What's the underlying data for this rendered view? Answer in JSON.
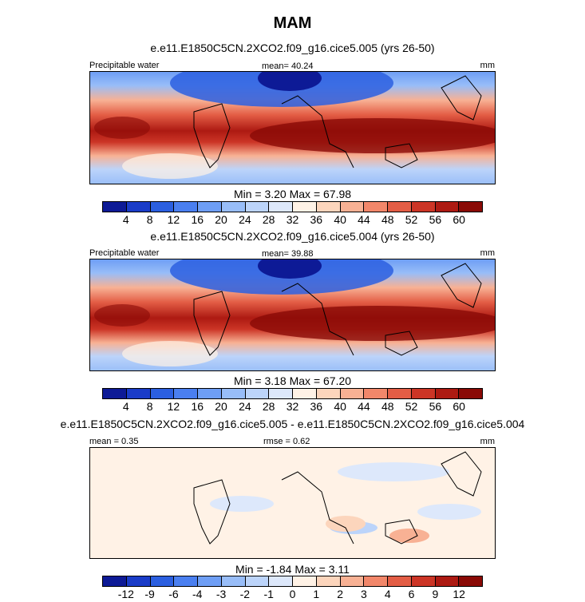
{
  "main_title": "MAM",
  "panels": [
    {
      "case_title": "e.e11.E1850C5CN.2XCO2.f09_g16.cice5.005 (yrs 26-50)",
      "left_label": "Precipitable water",
      "mid_label": "mean=  40.24",
      "right_label": "mm",
      "minmax": "Min =   3.20  Max =   67.98"
    },
    {
      "case_title": "e.e11.E1850C5CN.2XCO2.f09_g16.cice5.004 (yrs 26-50)",
      "left_label": "Precipitable water",
      "mid_label": "mean=  39.88",
      "right_label": "mm",
      "minmax": "Min =   3.18  Max =   67.20"
    },
    {
      "case_title": "e.e11.E1850C5CN.2XCO2.f09_g16.cice5.005 - e.e11.E1850C5CN.2XCO2.f09_g16.cice5.004",
      "left_label": "mean =   0.35",
      "mid_label": "rmse =   0.62",
      "right_label": "mm",
      "minmax": "Min =  -1.84  Max =    3.11"
    }
  ],
  "chart_data": [
    {
      "type": "heatmap",
      "title": "e.e11.E1850C5CN.2XCO2.f09_g16.cice5.005 (yrs 26-50)",
      "variable": "Precipitable water",
      "units": "mm",
      "mean": 40.24,
      "min": 3.2,
      "max": 67.98,
      "colorbar_levels": [
        4,
        8,
        12,
        16,
        20,
        24,
        28,
        32,
        36,
        40,
        44,
        48,
        52,
        56,
        60
      ],
      "colorbar_tick_labels": [
        "4",
        "8",
        "12",
        "16",
        "20",
        "24",
        "28",
        "32",
        "36",
        "40",
        "44",
        "48",
        "52",
        "56",
        "60"
      ],
      "colorbar_colors": [
        "#0d1a96",
        "#1a3cc8",
        "#2b5fe0",
        "#4a7ff0",
        "#6e9ef5",
        "#98bdf8",
        "#bcd4fa",
        "#dde8fb",
        "#fff2e6",
        "#fcd5bc",
        "#f8b194",
        "#f2876a",
        "#e35d45",
        "#cc3526",
        "#ad1a12",
        "#8a0a06"
      ]
    },
    {
      "type": "heatmap",
      "title": "e.e11.E1850C5CN.2XCO2.f09_g16.cice5.004 (yrs 26-50)",
      "variable": "Precipitable water",
      "units": "mm",
      "mean": 39.88,
      "min": 3.18,
      "max": 67.2,
      "colorbar_levels": [
        4,
        8,
        12,
        16,
        20,
        24,
        28,
        32,
        36,
        40,
        44,
        48,
        52,
        56,
        60
      ],
      "colorbar_tick_labels": [
        "4",
        "8",
        "12",
        "16",
        "20",
        "24",
        "28",
        "32",
        "36",
        "40",
        "44",
        "48",
        "52",
        "56",
        "60"
      ],
      "colorbar_colors": [
        "#0d1a96",
        "#1a3cc8",
        "#2b5fe0",
        "#4a7ff0",
        "#6e9ef5",
        "#98bdf8",
        "#bcd4fa",
        "#dde8fb",
        "#fff2e6",
        "#fcd5bc",
        "#f8b194",
        "#f2876a",
        "#e35d45",
        "#cc3526",
        "#ad1a12",
        "#8a0a06"
      ]
    },
    {
      "type": "heatmap",
      "title": "e.e11.E1850C5CN.2XCO2.f09_g16.cice5.005 - e.e11.E1850C5CN.2XCO2.f09_g16.cice5.004",
      "units": "mm",
      "mean": 0.35,
      "rmse": 0.62,
      "min": -1.84,
      "max": 3.11,
      "colorbar_levels": [
        -12,
        -9,
        -6,
        -4,
        -3,
        -2,
        -1,
        0,
        1,
        2,
        3,
        4,
        6,
        9,
        12
      ],
      "colorbar_tick_labels": [
        "-12",
        "-9",
        "-6",
        "-4",
        "-3",
        "-2",
        "-1",
        "0",
        "1",
        "2",
        "3",
        "4",
        "6",
        "9",
        "12"
      ],
      "colorbar_colors": [
        "#0d1a96",
        "#1a3cc8",
        "#2b5fe0",
        "#4a7ff0",
        "#6e9ef5",
        "#98bdf8",
        "#bcd4fa",
        "#dde8fb",
        "#fff2e6",
        "#fcd5bc",
        "#f8b194",
        "#f2876a",
        "#e35d45",
        "#cc3526",
        "#ad1a12",
        "#8a0a06"
      ]
    }
  ]
}
